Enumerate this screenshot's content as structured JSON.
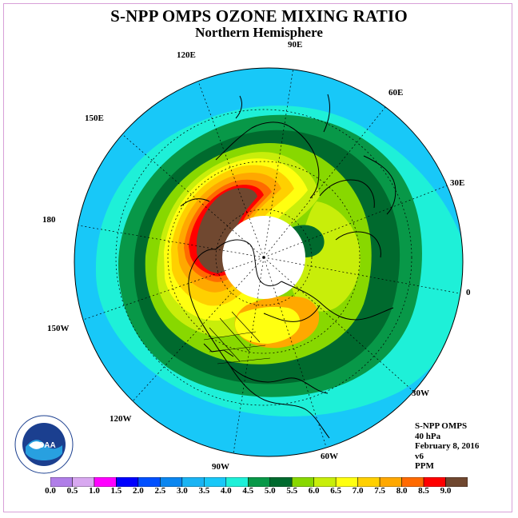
{
  "title": "S-NPP OMPS OZONE MIXING RATIO",
  "subtitle": "Northern Hemisphere",
  "logo_text": "NOAA",
  "logo_ring_text": "NATIONAL OCEANIC AND ATMOSPHERIC ADMINISTRATION • U.S. DEPARTMENT OF COMMERCE",
  "longitude_labels": {
    "lon_90e": "90E",
    "lon_120e": "120E",
    "lon_60e": "60E",
    "lon_150e": "150E",
    "lon_30e": "30E",
    "lon_180": "180",
    "lon_0": "0",
    "lon_150w": "150W",
    "lon_30w": "30W",
    "lon_120w": "120W",
    "lon_60w": "60W",
    "lon_90w": "90W"
  },
  "info": {
    "instrument": "S-NPP OMPS",
    "level": "40 hPa",
    "date": "February 8, 2016",
    "version": "v6",
    "units": "PPM"
  },
  "colorbar": {
    "tick_labels": [
      "0.0",
      "0.5",
      "1.0",
      "1.5",
      "2.0",
      "2.5",
      "3.0",
      "3.5",
      "4.0",
      "4.5",
      "5.0",
      "5.5",
      "6.0",
      "6.5",
      "7.0",
      "7.5",
      "8.0",
      "8.5",
      "9.0"
    ],
    "colors": [
      "#b07ee8",
      "#d8a8f0",
      "#ff00ff",
      "#0000ff",
      "#0050ff",
      "#0a86f0",
      "#1ab4f4",
      "#18c8f8",
      "#1ef0d8",
      "#089848",
      "#006a2e",
      "#88d800",
      "#c8ee0a",
      "#ffff10",
      "#ffd000",
      "#ffa800",
      "#ff6a00",
      "#ff0000",
      "#704830"
    ]
  },
  "map_colors": {
    "ocean_edge": "#18c8f8",
    "band_3_5": "#18c8f8",
    "band_4_0": "#1ef0d8",
    "band_4_5": "#089848",
    "band_5_0": "#006a2e",
    "band_5_5": "#88d800",
    "band_6_0": "#c8ee0a",
    "band_6_5": "#ffff10",
    "band_7_0": "#ffd000",
    "band_7_5": "#ffa800",
    "band_8_0": "#ff6a00",
    "band_8_5": "#ff0000",
    "band_9_0": "#704830",
    "polar_gap": "#ffffff"
  }
}
